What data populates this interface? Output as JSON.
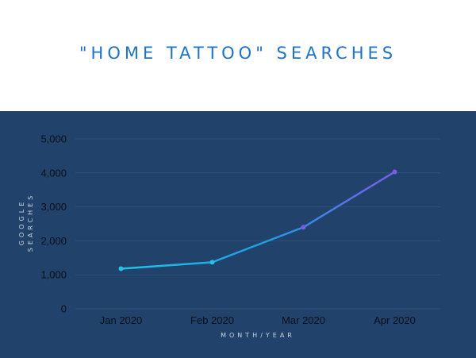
{
  "title": "\"HOME TATTOO\" SEARCHES",
  "colors": {
    "panel_bg": "#21426a",
    "title": "#1f73c4",
    "gradient_start": "#22c3e6",
    "gradient_mid": "#1f9be6",
    "gradient_end": "#7a5be8",
    "gridline": "#2d5079"
  },
  "chart_data": {
    "type": "line",
    "xlabel": "MONTH/YEAR",
    "ylabel": "GOOGLE SEARCHES",
    "categories": [
      "Jan 2020",
      "Feb 2020",
      "Mar 2020",
      "Apr 2020"
    ],
    "series": [
      {
        "values": [
          1180,
          1370,
          2400,
          4030
        ]
      }
    ],
    "ylim": [
      0,
      5000
    ],
    "yticks": [
      0,
      1000,
      2000,
      3000,
      4000,
      5000
    ],
    "ytick_labels": [
      "0",
      "1,000",
      "2,000",
      "3,000",
      "4,000",
      "5,000"
    ],
    "grid": true,
    "legend": "none"
  }
}
